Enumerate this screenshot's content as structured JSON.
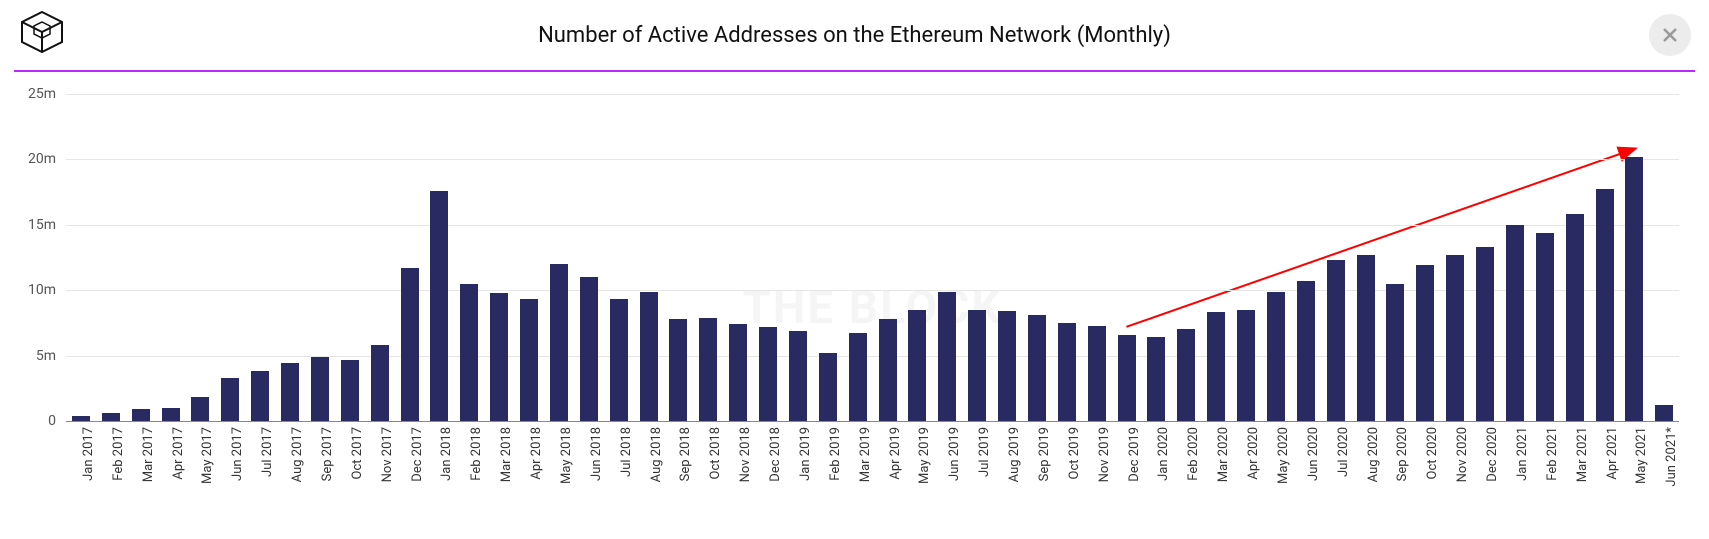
{
  "header": {
    "title": "Number of Active Addresses on the Ethereum Network (Monthly)",
    "title_fontsize": 22,
    "rule_color": "#bb29ff"
  },
  "watermark": {
    "text": "THE BLOCK",
    "color": "rgba(0,0,0,0.04)"
  },
  "chart": {
    "type": "bar",
    "bar_color": "#2a2a63",
    "background_color": "#ffffff",
    "grid_color": "#e6e6e6",
    "y_axis": {
      "min": 0,
      "max": 25,
      "ticks": [
        0,
        5,
        10,
        15,
        20,
        25
      ],
      "tick_labels": [
        "0",
        "5m",
        "10m",
        "15m",
        "20m",
        "25m"
      ],
      "label_fontsize": 14,
      "label_color": "#555555"
    },
    "x_axis": {
      "label_fontsize": 13,
      "label_color": "#333333"
    },
    "categories": [
      "Jan 2017",
      "Feb 2017",
      "Mar 2017",
      "Apr 2017",
      "May 2017",
      "Jun 2017",
      "Jul 2017",
      "Aug 2017",
      "Sep 2017",
      "Oct 2017",
      "Nov 2017",
      "Dec 2017",
      "Jan 2018",
      "Feb 2018",
      "Mar 2018",
      "Apr 2018",
      "May 2018",
      "Jun 2018",
      "Jul 2018",
      "Aug 2018",
      "Sep 2018",
      "Oct 2018",
      "Nov 2018",
      "Dec 2018",
      "Jan 2019",
      "Feb 2019",
      "Mar 2019",
      "Apr 2019",
      "May 2019",
      "Jun 2019",
      "Jul 2019",
      "Aug 2019",
      "Sep 2019",
      "Oct 2019",
      "Nov 2019",
      "Dec 2019",
      "Jan 2020",
      "Feb 2020",
      "Mar 2020",
      "Apr 2020",
      "May 2020",
      "Jun 2020",
      "Jul 2020",
      "Aug 2020",
      "Sep 2020",
      "Oct 2020",
      "Nov 2020",
      "Dec 2020",
      "Jan 2021",
      "Feb 2021",
      "Mar 2021",
      "Apr 2021",
      "May 2021",
      "Jun 2021*"
    ],
    "values": [
      0.4,
      0.6,
      0.9,
      1.0,
      1.8,
      3.3,
      3.8,
      4.4,
      4.9,
      4.7,
      5.8,
      11.7,
      17.6,
      10.5,
      9.8,
      9.3,
      12.0,
      11.0,
      9.3,
      9.9,
      7.8,
      7.9,
      7.4,
      7.2,
      6.9,
      5.2,
      6.7,
      7.8,
      8.5,
      9.9,
      8.5,
      8.4,
      8.1,
      7.5,
      7.3,
      6.6,
      6.4,
      7.0,
      8.3,
      8.5,
      9.9,
      10.7,
      12.3,
      12.7,
      10.5,
      11.9,
      12.7,
      13.3,
      15.0,
      14.4,
      15.8,
      17.7,
      20.2,
      1.2
    ],
    "arrow": {
      "color": "#ff0000",
      "from_index": 35,
      "from_value": 7.2,
      "to_index": 52,
      "to_value": 20.8,
      "stroke_width": 2
    }
  }
}
